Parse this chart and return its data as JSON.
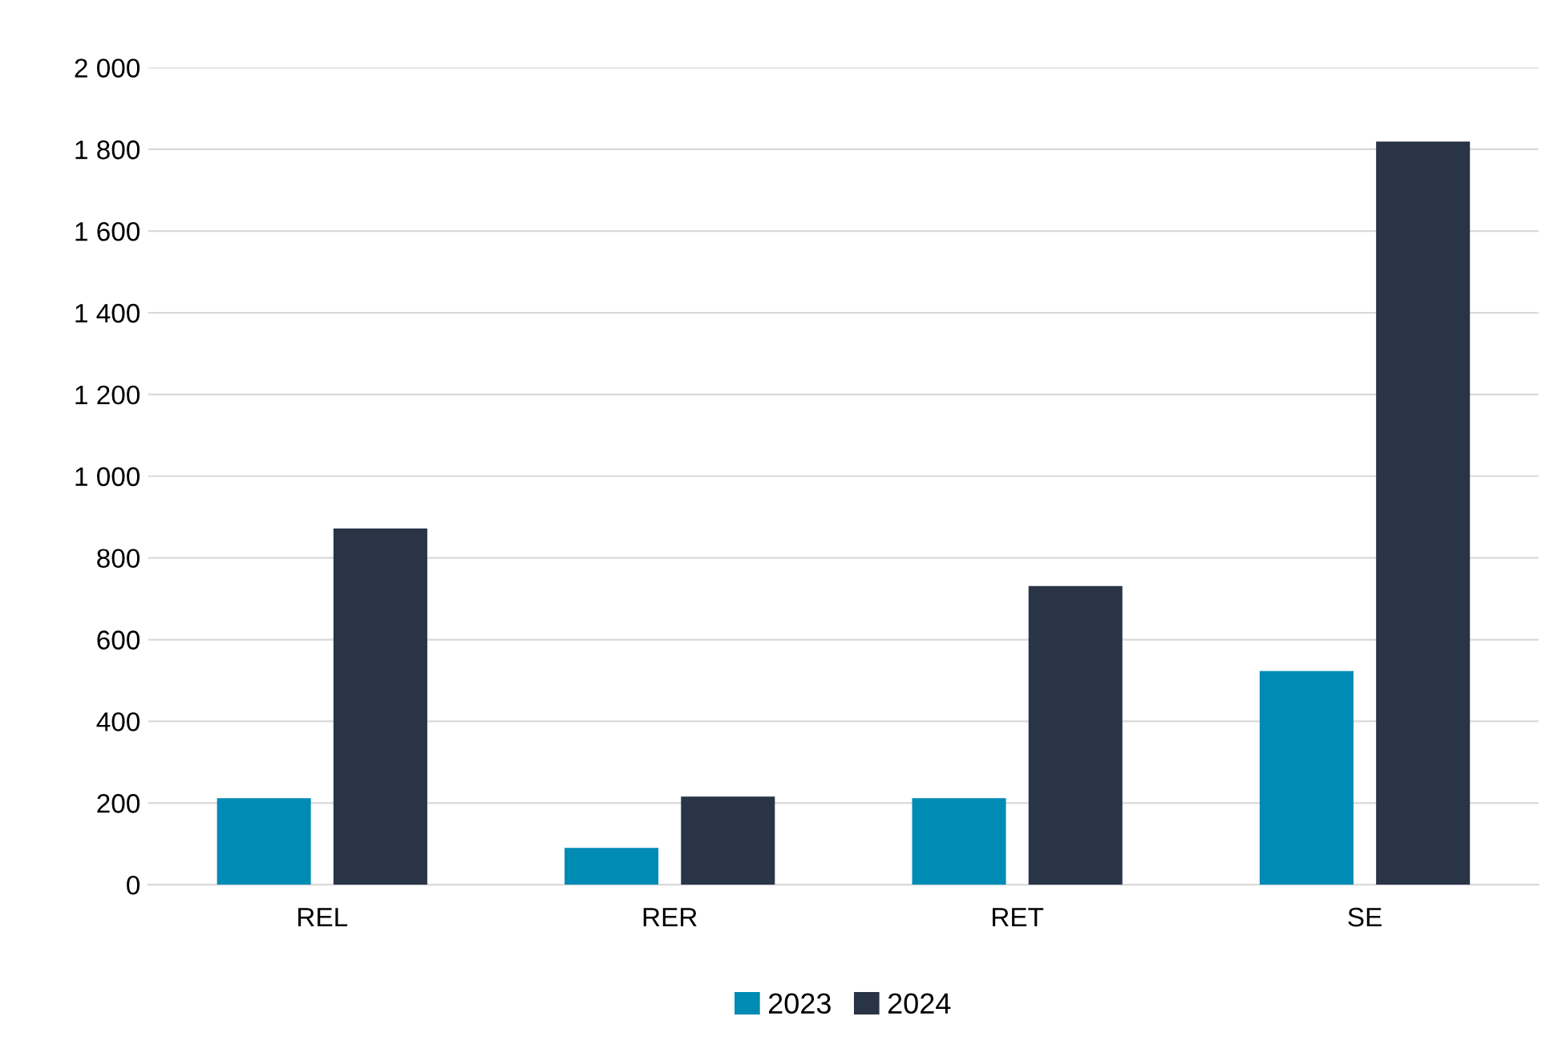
{
  "chart_data": {
    "type": "bar",
    "categories": [
      "REL",
      "RER",
      "RET",
      "SE"
    ],
    "series": [
      {
        "name": "2023",
        "color": "#008bb5",
        "values": [
          212,
          90,
          212,
          523
        ]
      },
      {
        "name": "2024",
        "color": "#293446",
        "values": [
          872,
          216,
          731,
          1819
        ]
      }
    ],
    "ylim": [
      0,
      2000
    ],
    "yticks": [
      0,
      200,
      400,
      600,
      800,
      {
        "value": 1000,
        "label": "1 000"
      },
      {
        "value": 1200,
        "label": "1 200"
      },
      {
        "value": 1400,
        "label": "1 400"
      },
      {
        "value": 1600,
        "label": "1 600"
      },
      {
        "value": 1800,
        "label": "1 800"
      },
      {
        "value": 2000,
        "label": "2 000"
      }
    ],
    "grid": "y",
    "legend": "bottom"
  }
}
